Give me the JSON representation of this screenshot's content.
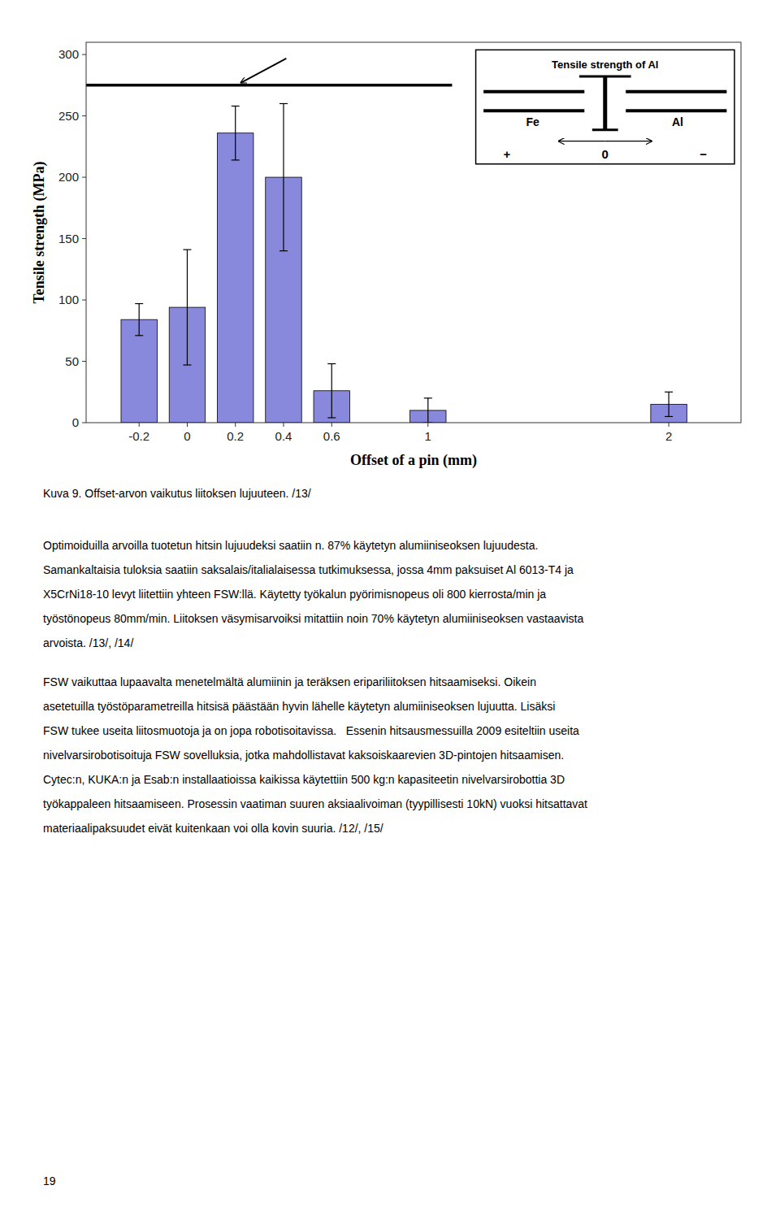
{
  "chart_data": {
    "type": "bar",
    "x": [
      -0.2,
      0,
      0.2,
      0.4,
      0.6,
      1,
      2
    ],
    "values": [
      84,
      94,
      236,
      200,
      26,
      10,
      15
    ],
    "errors": [
      13,
      47,
      22,
      60,
      22,
      10,
      10
    ],
    "color": "#8888dd",
    "xlabel": "Offset of a pin (mm)",
    "ylabel": "Tensile strength (MPa)",
    "xlim": [
      -0.42,
      2.3
    ],
    "ylim": [
      0,
      310
    ],
    "xticks": [
      -0.2,
      0,
      0.2,
      0.4,
      0.6,
      1,
      2
    ],
    "yticks": [
      0,
      50,
      100,
      150,
      200,
      250,
      300
    ],
    "reference_line": {
      "y": 275,
      "x_end": 1.1,
      "label": "Tensile strength of Al"
    },
    "inset_labels": [
      "Fe",
      "Al"
    ],
    "inset_scale_labels": [
      "+",
      "0",
      "−"
    ]
  },
  "caption": "Kuva 9. Offset-arvon vaikutus liitoksen lujuuteen. /13/",
  "paragraphs": [
    [
      "Optimoiduilla arvoilla tuotetun hitsin lujuudeksi saatiin n. 87% käytetyn alumiiniseoksen lujuudesta.",
      "Samankaltaisia tuloksia saatiin saksalais/italialaisessa tutkimuksessa, jossa 4mm paksuiset Al 6013-T4 ja",
      "X5CrNi18-10 levyt liitettiin yhteen FSW:llä. Käytetty työkalun pyörimisnopeus oli 800 kierrosta/min ja",
      "työstönopeus 80mm/min. Liitoksen väsymisarvoiksi mitattiin noin 70% käytetyn alumiiniseoksen vastaavista",
      "arvoista. /13/, /14/"
    ],
    [
      "FSW vaikuttaa lupaavalta menetelmältä alumiinin ja teräksen eripariliitoksen hitsaamiseksi. Oikein",
      "asetetuilla työstöparametreilla hitsisä päästään hyvin lähelle käytetyn alumiiniseoksen lujuutta. Lisäksi",
      "FSW tukee useita liitosmuotoja ja on jopa robotisoitavissa.   Essenin hitsausmessuilla 2009 esiteltiin useita",
      "nivelvarsirobotisoituja FSW sovelluksia, jotka mahdollistavat kaksoiskaarevien 3D-pintojen hitsaamisen.",
      "Cytec:n, KUKA:n ja Esab:n installaatioissa kaikissa käytettiin 500 kg:n kapasiteetin nivelvarsirobottia 3D",
      "työkappaleen hitsaamiseen. Prosessin vaatiman suuren aksiaalivoiman (tyypillisesti 10kN) vuoksi hitsattavat",
      "materiaalipaksuudet eivät kuitenkaan voi olla kovin suuria. /12/, /15/"
    ]
  ],
  "page_number": "19"
}
